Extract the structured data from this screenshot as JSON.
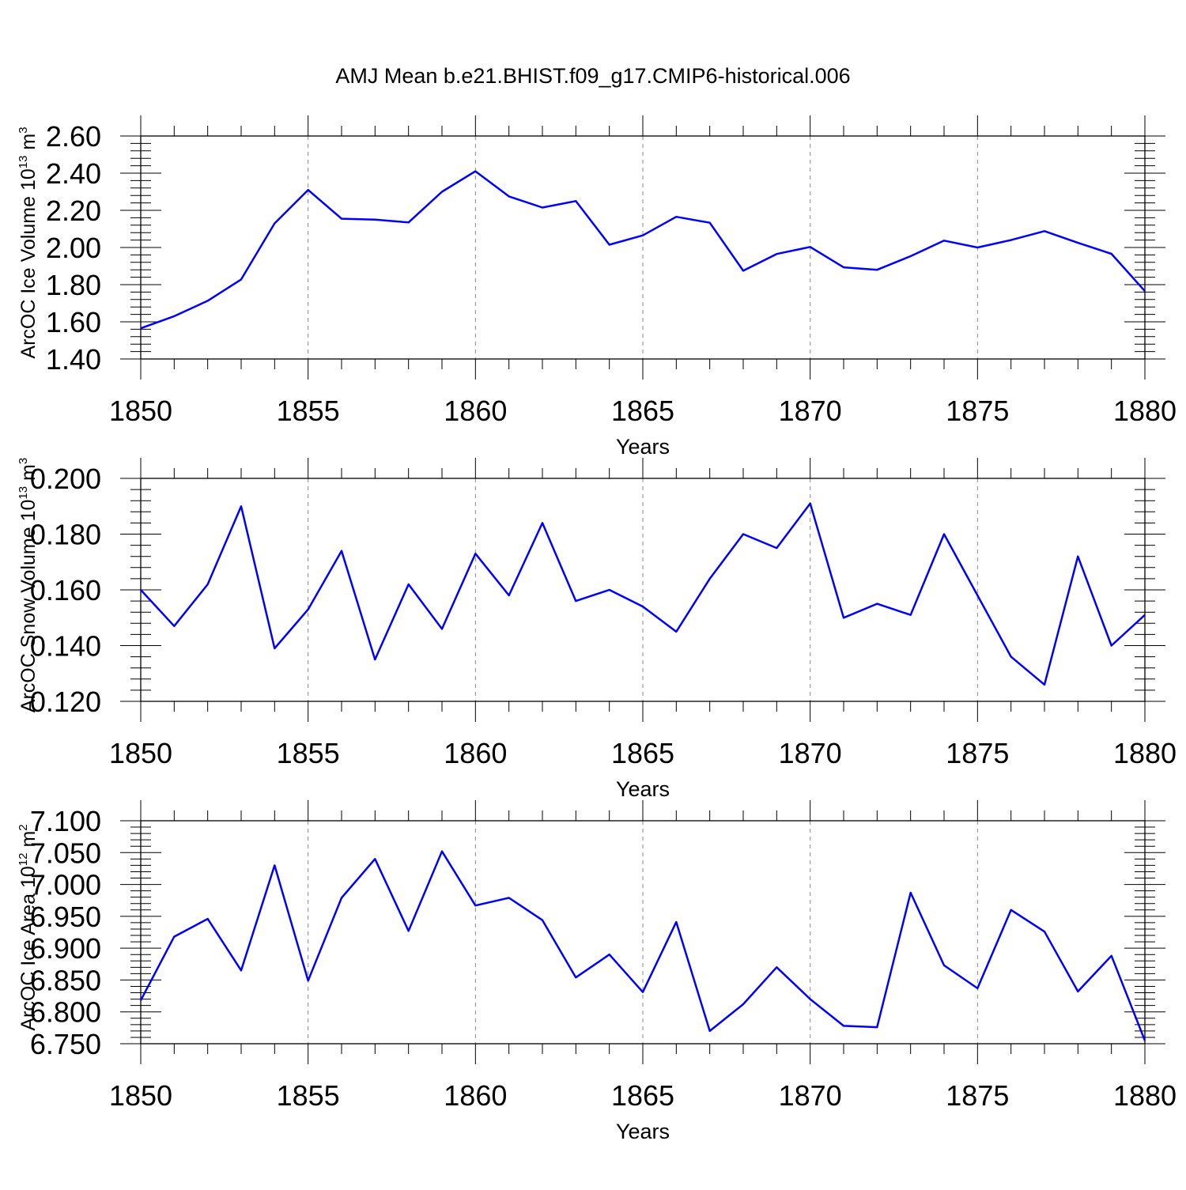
{
  "title": "AMJ Mean b.e21.BHIST.f09_g17.CMIP6-historical.006",
  "line_color": "#0000ff",
  "chart_data": [
    {
      "type": "line",
      "xlabel": "Years",
      "ylabel_parts": [
        "ArcOC Ice Volume 10",
        "13",
        " m",
        "3"
      ],
      "xlim": [
        1850,
        1880
      ],
      "ylim": [
        1.4,
        2.6
      ],
      "x_ticks": [
        "1850",
        "1855",
        "1860",
        "1865",
        "1870",
        "1875",
        "1880"
      ],
      "y_ticks": [
        "1.40",
        "1.60",
        "1.80",
        "2.00",
        "2.20",
        "2.40",
        "2.60"
      ],
      "y_tick_values": [
        1.4,
        1.6,
        1.8,
        2.0,
        2.2,
        2.4,
        2.6
      ],
      "x": [
        1850,
        1851,
        1852,
        1853,
        1854,
        1855,
        1856,
        1857,
        1858,
        1859,
        1860,
        1861,
        1862,
        1863,
        1864,
        1865,
        1866,
        1867,
        1868,
        1869,
        1870,
        1871,
        1872,
        1873,
        1874,
        1875,
        1876,
        1877,
        1878,
        1879,
        1880
      ],
      "values": [
        1.565,
        1.63,
        1.713,
        1.828,
        2.13,
        2.31,
        2.155,
        2.15,
        2.135,
        2.3,
        2.41,
        2.275,
        2.215,
        2.25,
        2.015,
        2.065,
        2.165,
        2.133,
        1.875,
        1.965,
        2.003,
        1.893,
        1.88,
        1.953,
        2.037,
        2.0,
        2.04,
        2.088,
        2.025,
        1.966,
        1.765
      ],
      "grid": "vertical-dashed"
    },
    {
      "type": "line",
      "xlabel": "Years",
      "ylabel_parts": [
        "ArcOC Snow Volume 10",
        "13",
        " m",
        "3"
      ],
      "xlim": [
        1850,
        1880
      ],
      "ylim": [
        0.12,
        0.2
      ],
      "x_ticks": [
        "1850",
        "1855",
        "1860",
        "1865",
        "1870",
        "1875",
        "1880"
      ],
      "y_ticks": [
        "0.120",
        "0.140",
        "0.160",
        "0.180",
        "0.200"
      ],
      "y_tick_values": [
        0.12,
        0.14,
        0.16,
        0.18,
        0.2
      ],
      "x": [
        1850,
        1851,
        1852,
        1853,
        1854,
        1855,
        1856,
        1857,
        1858,
        1859,
        1860,
        1861,
        1862,
        1863,
        1864,
        1865,
        1866,
        1867,
        1868,
        1869,
        1870,
        1871,
        1872,
        1873,
        1874,
        1875,
        1876,
        1877,
        1878,
        1879,
        1880
      ],
      "values": [
        0.16,
        0.147,
        0.162,
        0.19,
        0.139,
        0.153,
        0.174,
        0.135,
        0.162,
        0.146,
        0.173,
        0.158,
        0.184,
        0.156,
        0.16,
        0.154,
        0.145,
        0.164,
        0.18,
        0.175,
        0.191,
        0.15,
        0.155,
        0.151,
        0.18,
        0.158,
        0.136,
        0.126,
        0.172,
        0.14,
        0.151
      ],
      "grid": "vertical-dashed"
    },
    {
      "type": "line",
      "xlabel": "Years",
      "ylabel_parts": [
        "ArcOC Ice Area 10",
        "12",
        " m",
        "2"
      ],
      "xlim": [
        1850,
        1880
      ],
      "ylim": [
        6.75,
        7.1
      ],
      "x_ticks": [
        "1850",
        "1855",
        "1860",
        "1865",
        "1870",
        "1875",
        "1880"
      ],
      "y_ticks": [
        "6.750",
        "6.800",
        "6.850",
        "6.900",
        "6.950",
        "7.000",
        "7.050",
        "7.100"
      ],
      "y_tick_values": [
        6.75,
        6.8,
        6.85,
        6.9,
        6.95,
        7.0,
        7.05,
        7.1
      ],
      "x": [
        1850,
        1851,
        1852,
        1853,
        1854,
        1855,
        1856,
        1857,
        1858,
        1859,
        1860,
        1861,
        1862,
        1863,
        1864,
        1865,
        1866,
        1867,
        1868,
        1869,
        1870,
        1871,
        1872,
        1873,
        1874,
        1875,
        1876,
        1877,
        1878,
        1879,
        1880
      ],
      "values": [
        6.818,
        6.918,
        6.946,
        6.865,
        7.03,
        6.849,
        6.979,
        7.04,
        6.927,
        7.052,
        6.967,
        6.979,
        6.944,
        6.854,
        6.89,
        6.831,
        6.941,
        6.77,
        6.812,
        6.87,
        6.82,
        6.778,
        6.776,
        6.987,
        6.873,
        6.837,
        6.96,
        6.926,
        6.832,
        6.888,
        6.755
      ],
      "grid": "vertical-dashed"
    }
  ]
}
